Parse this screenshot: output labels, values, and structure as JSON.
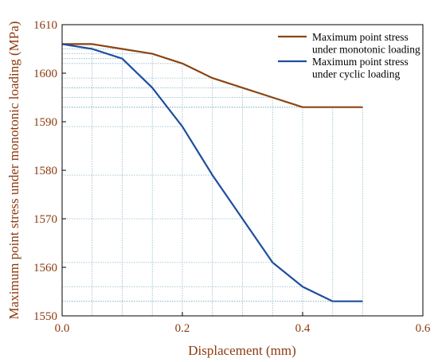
{
  "colors": {
    "axis_text": "#8B3A0F",
    "series_monotonic": "#8B4513",
    "series_cyclic": "#1F4E9E",
    "grid": "#8FB8C8"
  },
  "chart_data": {
    "type": "line",
    "title": "",
    "xlabel": "Displacement (mm)",
    "ylabel": "Maximum point stress under monotonic loading (MPa)",
    "xlim": [
      0.0,
      0.6
    ],
    "ylim": [
      1550,
      1610
    ],
    "x_ticks": [
      0.0,
      0.2,
      0.4,
      0.6
    ],
    "x_tick_labels": [
      "0.0",
      "0.2",
      "0.4",
      "0.6"
    ],
    "y_ticks": [
      1550,
      1560,
      1570,
      1580,
      1590,
      1600,
      1610
    ],
    "y_tick_labels": [
      "1550",
      "1560",
      "1570",
      "1580",
      "1590",
      "1600",
      "1610"
    ],
    "legend_position": "top-right",
    "series": [
      {
        "name": "Maximum point stress under monotonic loading",
        "legend_lines": [
          "Maximum point stress",
          "under monotonic loading"
        ],
        "color": "#8B4513",
        "x": [
          0.0,
          0.05,
          0.1,
          0.15,
          0.2,
          0.25,
          0.3,
          0.35,
          0.4,
          0.45,
          0.5
        ],
        "y": [
          1606,
          1606,
          1605,
          1604,
          1602,
          1599,
          1597,
          1595,
          1593,
          1593,
          1593
        ]
      },
      {
        "name": "Maximum point stress under cyclic loading",
        "legend_lines": [
          "Maximum point stress",
          "under cyclic loading"
        ],
        "color": "#1F4E9E",
        "x": [
          0.0,
          0.05,
          0.1,
          0.15,
          0.2,
          0.25,
          0.3,
          0.35,
          0.4,
          0.45,
          0.5
        ],
        "y": [
          1606,
          1605,
          1603,
          1597,
          1589,
          1579,
          1570,
          1561,
          1556,
          1553,
          1553
        ]
      }
    ]
  }
}
